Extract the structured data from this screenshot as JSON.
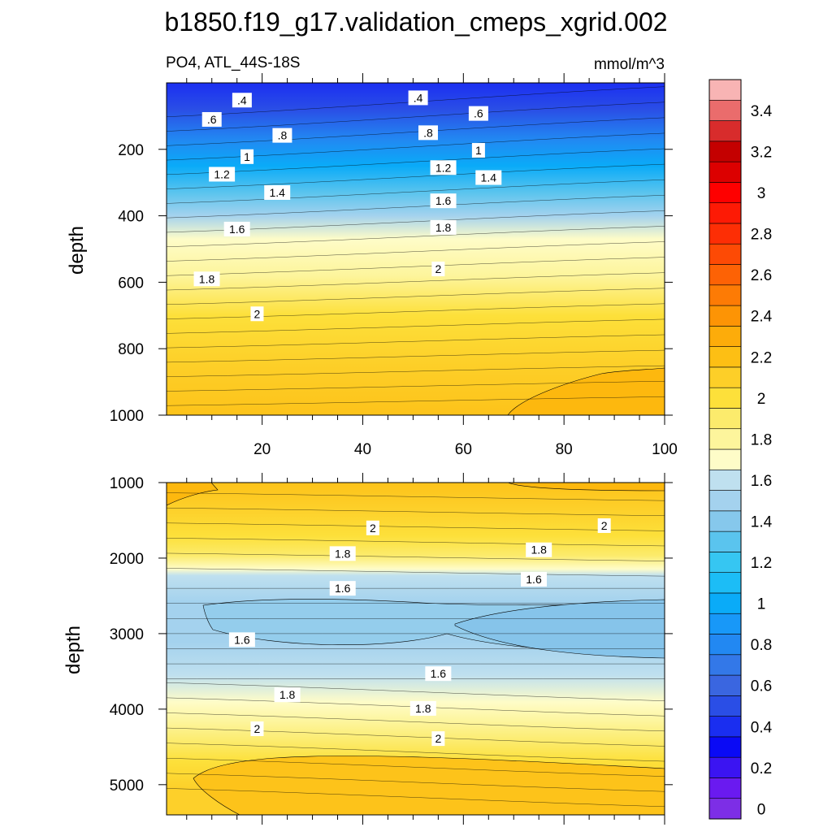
{
  "chart_data": {
    "type": "contour",
    "title": "b1850.f19_g17.validation_cmeps_xgrid.002",
    "subtitle": "PO4, ATL_44S-18S",
    "units": "mmol/m^3",
    "colorbar": {
      "levels": [
        0,
        0.1,
        0.2,
        0.3,
        0.4,
        0.5,
        0.6,
        0.7,
        0.8,
        0.9,
        1,
        1.1,
        1.2,
        1.3,
        1.4,
        1.5,
        1.6,
        1.7,
        1.8,
        1.9,
        2,
        2.1,
        2.2,
        2.3,
        2.4,
        2.5,
        2.6,
        2.7,
        2.8,
        2.9,
        3,
        3.1,
        3.2,
        3.3,
        3.4,
        3.5
      ],
      "tick_labels": [
        "0",
        "0.2",
        "0.4",
        "0.6",
        "0.8",
        "1",
        "1.2",
        "1.4",
        "1.6",
        "1.8",
        "2",
        "2.2",
        "2.4",
        "2.6",
        "2.8",
        "3",
        "3.2",
        "3.4"
      ],
      "colors": [
        "#7d2ee6",
        "#6a1af0",
        "#3b14f2",
        "#0a0af5",
        "#1a2ef0",
        "#2a4ee6",
        "#3a66e0",
        "#3378e8",
        "#2288f2",
        "#1898f8",
        "#0aabf8",
        "#1cbdf6",
        "#36c6f2",
        "#5ac4ee",
        "#86c8ec",
        "#a4d2ee",
        "#bfe0ef",
        "#fefcc8",
        "#fdf59c",
        "#fceb6c",
        "#fde03a",
        "#fdcf28",
        "#fdbf14",
        "#fdac0a",
        "#fd9405",
        "#fd7b05",
        "#fd6205",
        "#fd4a05",
        "#fd2e05",
        "#fd1a05",
        "#fe0000",
        "#dc0000",
        "#c40000",
        "#d82c2c",
        "#ea6c6c",
        "#f8b4b4"
      ]
    },
    "panels": [
      {
        "name": "upper",
        "ylabel": "depth",
        "ylim": [
          0,
          1000
        ],
        "yticks": [
          200,
          400,
          600,
          800,
          1000
        ],
        "xlim": [
          1,
          100
        ],
        "xticks": [
          20,
          40,
          60,
          80,
          100
        ],
        "x_minor": [
          5,
          10,
          15,
          25,
          30,
          35,
          45,
          50,
          55,
          65,
          70,
          75,
          85,
          90,
          95
        ],
        "contour_labels": [
          {
            "text": ".4",
            "x": 16,
            "y": 52
          },
          {
            "text": ".4",
            "x": 51,
            "y": 45
          },
          {
            "text": ".6",
            "x": 10,
            "y": 110
          },
          {
            "text": ".6",
            "x": 63,
            "y": 92
          },
          {
            "text": ".8",
            "x": 24,
            "y": 158
          },
          {
            "text": ".8",
            "x": 53,
            "y": 150
          },
          {
            "text": "1",
            "x": 17,
            "y": 222
          },
          {
            "text": "1",
            "x": 63,
            "y": 203
          },
          {
            "text": "1.2",
            "x": 12,
            "y": 275
          },
          {
            "text": "1.2",
            "x": 56,
            "y": 255
          },
          {
            "text": "1.4",
            "x": 23,
            "y": 330
          },
          {
            "text": "1.4",
            "x": 65,
            "y": 285
          },
          {
            "text": "1.6",
            "x": 15,
            "y": 440
          },
          {
            "text": "1.6",
            "x": 56,
            "y": 355
          },
          {
            "text": "1.8",
            "x": 9,
            "y": 590
          },
          {
            "text": "1.8",
            "x": 56,
            "y": 435
          },
          {
            "text": "2",
            "x": 19,
            "y": 695
          },
          {
            "text": "2",
            "x": 55,
            "y": 560
          }
        ]
      },
      {
        "name": "lower",
        "ylabel": "depth",
        "ylim": [
          1000,
          5400
        ],
        "yticks": [
          1000,
          2000,
          3000,
          4000,
          5000
        ],
        "xlim": [
          1,
          100
        ],
        "xticks": [
          20,
          40,
          60,
          80,
          100
        ],
        "x_minor": [
          5,
          10,
          15,
          25,
          30,
          35,
          45,
          50,
          55,
          65,
          70,
          75,
          85,
          90,
          95
        ],
        "contour_labels": [
          {
            "text": "2",
            "x": 42,
            "y": 1600
          },
          {
            "text": "2",
            "x": 88,
            "y": 1570
          },
          {
            "text": "1.8",
            "x": 36,
            "y": 1940
          },
          {
            "text": "1.8",
            "x": 75,
            "y": 1890
          },
          {
            "text": "1.6",
            "x": 36,
            "y": 2400
          },
          {
            "text": "1.6",
            "x": 74,
            "y": 2280
          },
          {
            "text": "1.6",
            "x": 16,
            "y": 3080
          },
          {
            "text": "1.6",
            "x": 55,
            "y": 3530
          },
          {
            "text": "1.8",
            "x": 25,
            "y": 3810
          },
          {
            "text": "1.8",
            "x": 52,
            "y": 3990
          },
          {
            "text": "2",
            "x": 19,
            "y": 4260
          },
          {
            "text": "2",
            "x": 55,
            "y": 4390
          }
        ]
      }
    ]
  }
}
